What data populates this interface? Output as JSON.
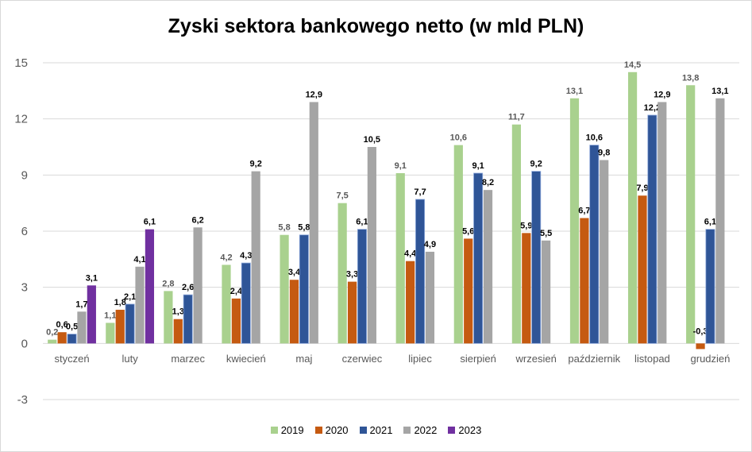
{
  "chart_data": {
    "type": "bar",
    "title": "Zyski sektora bankowego netto (w mld PLN)",
    "xlabel": "",
    "ylabel": "",
    "ylim": [
      -3,
      15
    ],
    "yticks": [
      -3,
      0,
      3,
      6,
      9,
      12,
      15
    ],
    "grid": true,
    "legend_position": "bottom",
    "categories": [
      "styczeń",
      "luty",
      "marzec",
      "kwiecień",
      "maj",
      "czerwiec",
      "lipiec",
      "sierpień",
      "wrzesień",
      "październik",
      "listopad",
      "grudzień"
    ],
    "series": [
      {
        "name": "2019",
        "color": "#a9d18e",
        "label_style": "light",
        "values": [
          0.2,
          1.1,
          2.8,
          4.2,
          5.8,
          7.5,
          9.1,
          10.6,
          11.7,
          13.1,
          14.5,
          13.8
        ],
        "labels": [
          "0,2",
          "1,1",
          "2,8",
          "4,2",
          "5,8",
          "7,5",
          "9,1",
          "10,6",
          "11,7",
          "13,1",
          "14,5",
          "13,8"
        ]
      },
      {
        "name": "2020",
        "color": "#c55a11",
        "label_style": "bold",
        "values": [
          0.6,
          1.8,
          1.3,
          2.4,
          3.4,
          3.3,
          4.4,
          5.6,
          5.9,
          6.7,
          7.9,
          -0.3
        ],
        "labels": [
          "0,6",
          "1,8",
          "1,3",
          "2,4",
          "3,4",
          "3,3",
          "4,4",
          "5,6",
          "5,9",
          "6,7",
          "7,9",
          "-0,3"
        ]
      },
      {
        "name": "2021",
        "color": "#2f5597",
        "label_style": "bold",
        "values": [
          0.5,
          2.1,
          2.6,
          4.3,
          5.8,
          6.1,
          7.7,
          9.1,
          9.2,
          10.6,
          12.2,
          6.1
        ],
        "labels": [
          "0,5",
          "2,1",
          "2,6",
          "4,3",
          "5,8",
          "6,1",
          "7,7",
          "9,1",
          "9,2",
          "10,6",
          "12,2",
          "6,1"
        ]
      },
      {
        "name": "2022",
        "color": "#a5a5a5",
        "label_style": "bold",
        "values": [
          1.7,
          4.1,
          6.2,
          9.2,
          12.9,
          10.5,
          4.9,
          8.2,
          5.5,
          9.8,
          12.9,
          13.1
        ],
        "labels": [
          "1,7",
          "4,1",
          "6,2",
          "9,2",
          "12,9",
          "10,5",
          "4,9",
          "8,2",
          "5,5",
          "9,8",
          "12,9",
          "13,1"
        ]
      },
      {
        "name": "2023",
        "color": "#7030a0",
        "label_style": "bold",
        "values": [
          3.1,
          6.1,
          null,
          null,
          null,
          null,
          null,
          null,
          null,
          null,
          null,
          null
        ],
        "labels": [
          "3,1",
          "6,1",
          null,
          null,
          null,
          null,
          null,
          null,
          null,
          null,
          null,
          null
        ]
      }
    ]
  }
}
